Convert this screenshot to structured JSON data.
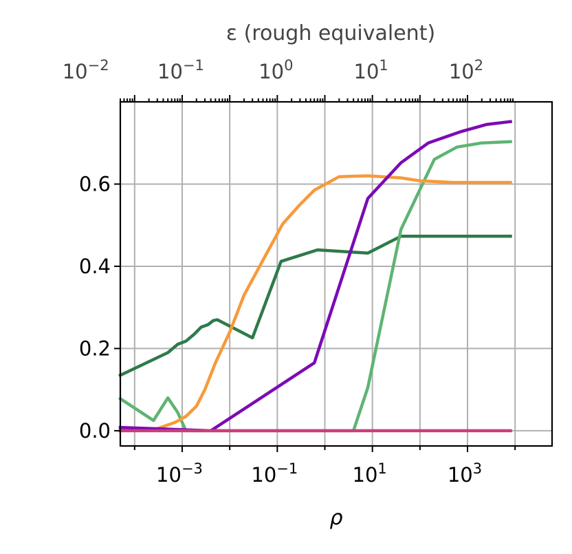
{
  "chart_data": {
    "type": "line",
    "xlabel": "ρ",
    "x2label": "ε (rough equivalent)",
    "ylabel": "",
    "x_scale": "log",
    "x_range": [
      5e-05,
      60000
    ],
    "y_range": [
      -0.037,
      0.8
    ],
    "grid": true,
    "legend": "none",
    "y_ticks": [
      {
        "value": 0.0,
        "label": "0.0"
      },
      {
        "value": 0.2,
        "label": "0.2"
      },
      {
        "value": 0.4,
        "label": "0.4"
      },
      {
        "value": 0.6,
        "label": "0.6"
      }
    ],
    "x_ticks": [
      {
        "value": 0.001,
        "base": "10",
        "exp": "−3"
      },
      {
        "value": 0.1,
        "base": "10",
        "exp": "−1"
      },
      {
        "value": 10,
        "base": "10",
        "exp": "1"
      },
      {
        "value": 1000,
        "base": "10",
        "exp": "3"
      }
    ],
    "x2_ticks": [
      {
        "value": 1e-05,
        "label_base": "10",
        "label_exp": "−2"
      },
      {
        "value": 0.001,
        "label_base": "10",
        "label_exp": "−1"
      },
      {
        "value": 0.1,
        "label_base": "10",
        "label_exp": "0"
      },
      {
        "value": 10,
        "label_base": "10",
        "label_exp": "1"
      },
      {
        "value": 1000,
        "label_base": "10",
        "label_exp": "2"
      }
    ],
    "series": [
      {
        "color": "#2f7a4a",
        "points": [
          [
            5e-05,
            0.135
          ],
          [
            0.0005,
            0.19
          ],
          [
            0.0008,
            0.21
          ],
          [
            0.0012,
            0.218
          ],
          [
            0.0018,
            0.235
          ],
          [
            0.0025,
            0.252
          ],
          [
            0.0035,
            0.258
          ],
          [
            0.0045,
            0.268
          ],
          [
            0.0055,
            0.27
          ],
          [
            0.03,
            0.226
          ],
          [
            0.12,
            0.412
          ],
          [
            0.7,
            0.44
          ],
          [
            8,
            0.432
          ],
          [
            40,
            0.473
          ],
          [
            8000,
            0.473
          ]
        ]
      },
      {
        "color": "#5fb472",
        "points": [
          [
            5e-05,
            0.078
          ],
          [
            0.00025,
            0.025
          ],
          [
            0.0005,
            0.08
          ],
          [
            0.0008,
            0.045
          ],
          [
            0.0012,
            0.0
          ],
          [
            4,
            0.0
          ],
          [
            8,
            0.105
          ],
          [
            40,
            0.49
          ],
          [
            200,
            0.66
          ],
          [
            600,
            0.69
          ],
          [
            2000,
            0.7
          ],
          [
            8000,
            0.703
          ]
        ]
      },
      {
        "color": "#f79a3a",
        "points": [
          [
            5e-05,
            0.0
          ],
          [
            0.0003,
            0.005
          ],
          [
            0.0007,
            0.02
          ],
          [
            0.0012,
            0.035
          ],
          [
            0.002,
            0.06
          ],
          [
            0.003,
            0.1
          ],
          [
            0.005,
            0.165
          ],
          [
            0.01,
            0.24
          ],
          [
            0.02,
            0.33
          ],
          [
            0.05,
            0.415
          ],
          [
            0.13,
            0.503
          ],
          [
            0.3,
            0.55
          ],
          [
            0.6,
            0.585
          ],
          [
            2,
            0.618
          ],
          [
            8,
            0.62
          ],
          [
            40,
            0.615
          ],
          [
            100,
            0.608
          ],
          [
            500,
            0.604
          ],
          [
            8000,
            0.604
          ]
        ]
      },
      {
        "color": "#7b0bb4",
        "points": [
          [
            5e-05,
            0.008
          ],
          [
            0.004,
            0.0
          ],
          [
            0.6,
            0.165
          ],
          [
            8,
            0.565
          ],
          [
            40,
            0.652
          ],
          [
            150,
            0.7
          ],
          [
            700,
            0.727
          ],
          [
            2500,
            0.745
          ],
          [
            8000,
            0.752
          ]
        ]
      },
      {
        "color": "#cc3d7c",
        "points": [
          [
            5e-05,
            0.0
          ],
          [
            8000,
            0.0
          ]
        ]
      }
    ]
  }
}
